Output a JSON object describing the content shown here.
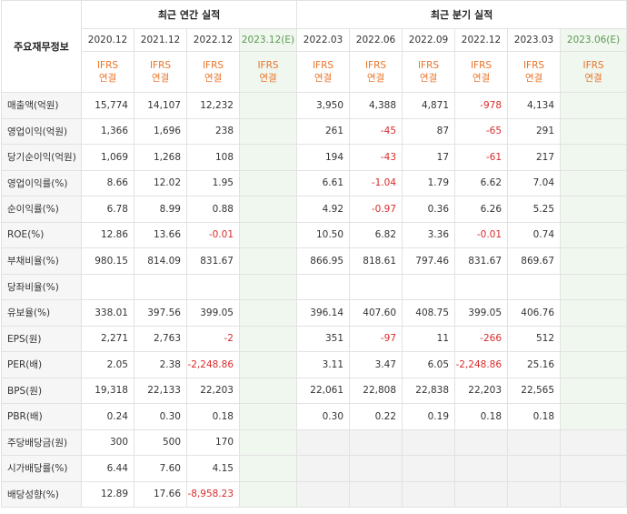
{
  "header": {
    "corner_label": "주요재무정보",
    "annual_group": "최근 연간 실적",
    "quarter_group": "최근 분기 실적",
    "annual_periods": [
      "2020.12",
      "2021.12",
      "2022.12",
      "2023.12(E)"
    ],
    "quarter_periods": [
      "2022.03",
      "2022.06",
      "2022.09",
      "2022.12",
      "2023.03",
      "2023.06(E)"
    ],
    "basis_top": "IFRS",
    "basis_bottom": "연결"
  },
  "rows": [
    {
      "label": "매출액(억원)",
      "annual": [
        "15,774",
        "14,107",
        "12,232",
        ""
      ],
      "quarter": [
        "3,950",
        "4,388",
        "4,871",
        "-978",
        "4,134",
        ""
      ]
    },
    {
      "label": "영업이익(억원)",
      "annual": [
        "1,366",
        "1,696",
        "238",
        ""
      ],
      "quarter": [
        "261",
        "-45",
        "87",
        "-65",
        "291",
        ""
      ]
    },
    {
      "label": "당기순이익(억원)",
      "annual": [
        "1,069",
        "1,268",
        "108",
        ""
      ],
      "quarter": [
        "194",
        "-43",
        "17",
        "-61",
        "217",
        ""
      ]
    },
    {
      "label": "영업이익률(%)",
      "annual": [
        "8.66",
        "12.02",
        "1.95",
        ""
      ],
      "quarter": [
        "6.61",
        "-1.04",
        "1.79",
        "6.62",
        "7.04",
        ""
      ]
    },
    {
      "label": "순이익률(%)",
      "annual": [
        "6.78",
        "8.99",
        "0.88",
        ""
      ],
      "quarter": [
        "4.92",
        "-0.97",
        "0.36",
        "6.26",
        "5.25",
        ""
      ]
    },
    {
      "label": "ROE(%)",
      "annual": [
        "12.86",
        "13.66",
        "-0.01",
        ""
      ],
      "quarter": [
        "10.50",
        "6.82",
        "3.36",
        "-0.01",
        "0.74",
        ""
      ]
    },
    {
      "label": "부채비율(%)",
      "annual": [
        "980.15",
        "814.09",
        "831.67",
        ""
      ],
      "quarter": [
        "866.95",
        "818.61",
        "797.46",
        "831.67",
        "869.67",
        ""
      ]
    },
    {
      "label": "당좌비율(%)",
      "annual": [
        "",
        "",
        "",
        ""
      ],
      "quarter": [
        "",
        "",
        "",
        "",
        "",
        ""
      ]
    },
    {
      "label": "유보율(%)",
      "annual": [
        "338.01",
        "397.56",
        "399.05",
        ""
      ],
      "quarter": [
        "396.14",
        "407.60",
        "408.75",
        "399.05",
        "406.76",
        ""
      ]
    },
    {
      "label": "EPS(원)",
      "annual": [
        "2,271",
        "2,763",
        "-2",
        ""
      ],
      "quarter": [
        "351",
        "-97",
        "11",
        "-266",
        "512",
        ""
      ]
    },
    {
      "label": "PER(배)",
      "annual": [
        "2.05",
        "2.38",
        "-2,248.86",
        ""
      ],
      "quarter": [
        "3.11",
        "3.47",
        "6.05",
        "-2,248.86",
        "25.16",
        ""
      ]
    },
    {
      "label": "BPS(원)",
      "annual": [
        "19,318",
        "22,133",
        "22,203",
        ""
      ],
      "quarter": [
        "22,061",
        "22,808",
        "22,838",
        "22,203",
        "22,565",
        ""
      ]
    },
    {
      "label": "PBR(배)",
      "annual": [
        "0.24",
        "0.30",
        "0.18",
        ""
      ],
      "quarter": [
        "0.30",
        "0.22",
        "0.19",
        "0.18",
        "0.18",
        ""
      ]
    },
    {
      "label": "주당배당금(원)",
      "annual": [
        "300",
        "500",
        "170",
        ""
      ],
      "quarter": null
    },
    {
      "label": "시가배당률(%)",
      "annual": [
        "6.44",
        "7.60",
        "4.15",
        ""
      ],
      "quarter": null
    },
    {
      "label": "배당성향(%)",
      "annual": [
        "12.89",
        "17.66",
        "-8,958.23",
        ""
      ],
      "quarter": null
    }
  ],
  "group_start_rows": [
    3,
    6,
    9,
    13
  ]
}
